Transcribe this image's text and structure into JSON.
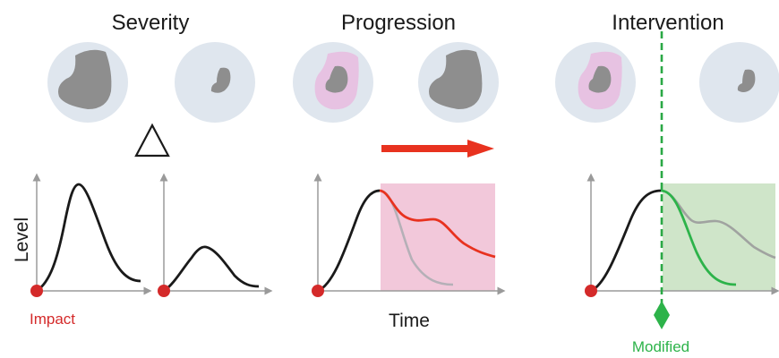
{
  "titles": {
    "severity": "Severity",
    "progression": "Progression",
    "intervention": "Intervention"
  },
  "labels": {
    "y_axis": "Level",
    "x_axis": "Time",
    "start_marker": "Impact",
    "intervention_marker": "Modified"
  },
  "colors": {
    "cell_fill": "#dfe6ee",
    "lesion_core": "#8e8e8e",
    "lesion_halo": "#e7c2e2",
    "baseline_curve": "#1a1a1a",
    "worsening_curve": "#e8321f",
    "improved_curve": "#2db34a",
    "ghost_curve": "#b5b0b7",
    "progression_window": "#f2c8da",
    "intervention_window": "#cfe5c9",
    "intervention_line": "#2aa845",
    "time_arrow": "#e8321f",
    "start_dot": "#d42a2a",
    "axis": "#9a9a9a"
  }
}
